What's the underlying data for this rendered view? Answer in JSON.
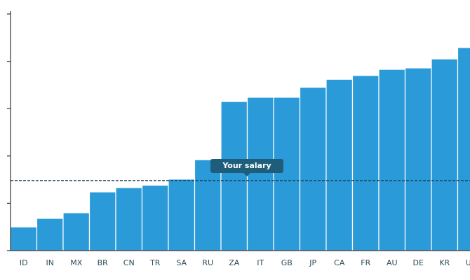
{
  "chart_data": {
    "type": "bar",
    "categories": [
      "ID",
      "IN",
      "MX",
      "BR",
      "CN",
      "TR",
      "SA",
      "RU",
      "ZA",
      "IT",
      "GB",
      "JP",
      "CA",
      "FR",
      "AU",
      "DE",
      "KR",
      "US"
    ],
    "values": [
      0.5,
      0.68,
      0.8,
      1.24,
      1.33,
      1.38,
      1.51,
      1.92,
      3.15,
      3.24,
      3.24,
      3.45,
      3.62,
      3.7,
      3.83,
      3.86,
      4.05,
      4.29
    ],
    "color": "#2a9ad9",
    "ylim": [
      0,
      5
    ],
    "yticks": [
      0,
      1,
      2,
      3,
      4,
      5
    ],
    "reference_line": {
      "value": 1.48,
      "label": "Your salary"
    }
  }
}
